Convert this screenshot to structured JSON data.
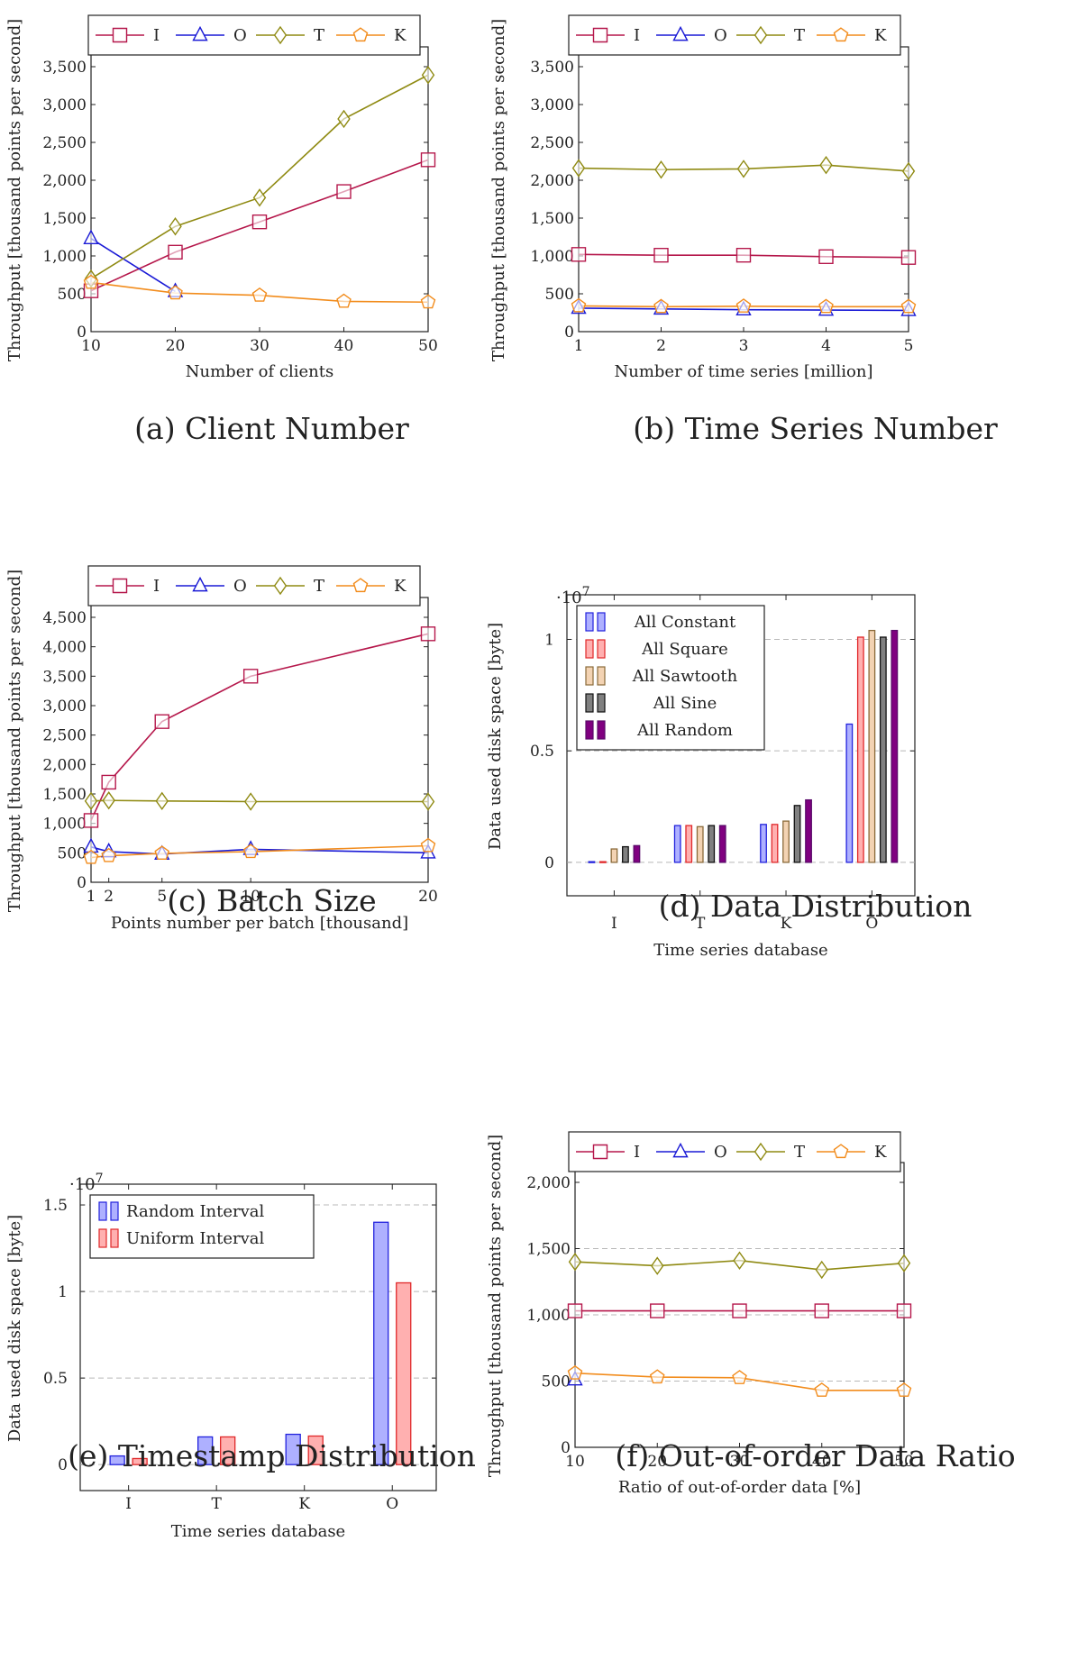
{
  "chart_data": [
    {
      "id": "a",
      "type": "line",
      "caption": "(a) Client Number",
      "xlabel": "Number of clients",
      "ylabel": "Throughput [thousand points per second]",
      "xlim": [
        10,
        50
      ],
      "ylim": [
        0,
        3500
      ],
      "xticks": [
        10,
        20,
        30,
        40,
        50
      ],
      "xtick_labels": [
        "10",
        "20",
        "30",
        "40",
        "50"
      ],
      "yticks": [
        0,
        500,
        1000,
        1500,
        2000,
        2500,
        3000,
        3500
      ],
      "ytick_labels": [
        "0",
        "500",
        "1,000",
        "1,500",
        "2,000",
        "2,500",
        "3,000",
        "3,500"
      ],
      "legend_position": "top",
      "series": [
        {
          "name": "I",
          "marker": "square",
          "color": "#b5174b",
          "x": [
            10,
            20,
            30,
            40,
            50
          ],
          "y": [
            540,
            1050,
            1450,
            1850,
            2270
          ]
        },
        {
          "name": "O",
          "marker": "triangle",
          "color": "#1a1ad6",
          "x": [
            10,
            20
          ],
          "y": [
            1230,
            530
          ]
        },
        {
          "name": "T",
          "marker": "diamond",
          "color": "#8f8a12",
          "x": [
            10,
            20,
            30,
            40,
            50
          ],
          "y": [
            700,
            1390,
            1770,
            2810,
            3390
          ]
        },
        {
          "name": "K",
          "marker": "pentagon",
          "color": "#f28c1c",
          "x": [
            10,
            20,
            30,
            40,
            50
          ],
          "y": [
            650,
            510,
            480,
            400,
            390
          ]
        }
      ]
    },
    {
      "id": "b",
      "type": "line",
      "caption": "(b) Time Series Number",
      "xlabel": "Number of time series [million]",
      "ylabel": "Throughput [thousand points per second]",
      "xlim": [
        1,
        5
      ],
      "ylim": [
        0,
        3500
      ],
      "xticks": [
        1,
        2,
        3,
        4,
        5
      ],
      "xtick_labels": [
        "1",
        "2",
        "3",
        "4",
        "5"
      ],
      "yticks": [
        0,
        500,
        1000,
        1500,
        2000,
        2500,
        3000,
        3500
      ],
      "ytick_labels": [
        "0",
        "500",
        "1,000",
        "1,500",
        "2,000",
        "2,500",
        "3,000",
        "3,500"
      ],
      "legend_position": "top",
      "series": [
        {
          "name": "I",
          "marker": "square",
          "color": "#b5174b",
          "x": [
            1,
            2,
            3,
            4,
            5
          ],
          "y": [
            1020,
            1010,
            1010,
            990,
            980
          ]
        },
        {
          "name": "O",
          "marker": "triangle",
          "color": "#1a1ad6",
          "x": [
            1,
            2,
            3,
            4,
            5
          ],
          "y": [
            310,
            300,
            290,
            285,
            280
          ]
        },
        {
          "name": "T",
          "marker": "diamond",
          "color": "#8f8a12",
          "x": [
            1,
            2,
            3,
            4,
            5
          ],
          "y": [
            2160,
            2140,
            2150,
            2200,
            2120
          ]
        },
        {
          "name": "K",
          "marker": "pentagon",
          "color": "#f28c1c",
          "x": [
            1,
            2,
            3,
            4,
            5
          ],
          "y": [
            340,
            330,
            335,
            330,
            330
          ]
        }
      ]
    },
    {
      "id": "c",
      "type": "line",
      "caption": "(c) Batch Size",
      "xlabel": "Points number per batch [thousand]",
      "ylabel": "Throughput [thousand points per second]",
      "xlim": [
        1,
        20
      ],
      "ylim": [
        0,
        4500
      ],
      "xticks": [
        1,
        2,
        5,
        10,
        20
      ],
      "xtick_labels": [
        "1",
        "2",
        "5",
        "10",
        "20"
      ],
      "yticks": [
        0,
        500,
        1000,
        1500,
        2000,
        2500,
        3000,
        3500,
        4000,
        4500
      ],
      "ytick_labels": [
        "0",
        "500",
        "1,000",
        "1,500",
        "2,000",
        "2,500",
        "3,000",
        "3,500",
        "4,000",
        "4,500"
      ],
      "legend_position": "top",
      "series": [
        {
          "name": "I",
          "marker": "square",
          "color": "#b5174b",
          "x": [
            1,
            2,
            5,
            10,
            20
          ],
          "y": [
            1050,
            1700,
            2730,
            3500,
            4220
          ]
        },
        {
          "name": "O",
          "marker": "triangle",
          "color": "#1a1ad6",
          "x": [
            1,
            2,
            5,
            10,
            20
          ],
          "y": [
            600,
            520,
            480,
            560,
            500
          ]
        },
        {
          "name": "T",
          "marker": "diamond",
          "color": "#8f8a12",
          "x": [
            1,
            2,
            5,
            10,
            20
          ],
          "y": [
            1380,
            1390,
            1380,
            1370,
            1370
          ]
        },
        {
          "name": "K",
          "marker": "pentagon",
          "color": "#f28c1c",
          "x": [
            1,
            2,
            5,
            10,
            20
          ],
          "y": [
            420,
            450,
            490,
            520,
            620
          ]
        }
      ]
    },
    {
      "id": "d",
      "type": "bar",
      "caption": "(d) Data Distribution",
      "xlabel": "Time series database",
      "ylabel": "Data used disk space [byte]",
      "scale_label": "·10",
      "scale_exp": "7",
      "categories": [
        "I",
        "T",
        "K",
        "O"
      ],
      "ylim": [
        -0.15,
        1.2
      ],
      "yticks": [
        0,
        0.5,
        1
      ],
      "ytick_labels": [
        "0",
        "0.5",
        "1"
      ],
      "legend_position": "top-left",
      "series": [
        {
          "name": "All Constant",
          "stroke": "#2222dd",
          "fill": "#aeb0ff",
          "values": [
            0.003,
            0.165,
            0.17,
            0.62
          ]
        },
        {
          "name": "All Square",
          "stroke": "#e0282a",
          "fill": "#ffb0b0",
          "values": [
            0.003,
            0.165,
            0.17,
            1.01
          ]
        },
        {
          "name": "All Sawtooth",
          "stroke": "#8a6a3a",
          "fill": "#f3d3b3",
          "values": [
            0.06,
            0.16,
            0.185,
            1.04
          ]
        },
        {
          "name": "All Sine",
          "stroke": "#111111",
          "fill": "#808080",
          "values": [
            0.07,
            0.165,
            0.255,
            1.01
          ]
        },
        {
          "name": "All Random",
          "stroke": "#5a0a6a",
          "fill": "#800080",
          "values": [
            0.075,
            0.165,
            0.28,
            1.04
          ]
        }
      ]
    },
    {
      "id": "e",
      "type": "bar",
      "caption": "(e) Timestamp Distribution",
      "xlabel": "Time series database",
      "ylabel": "Data used disk space [byte]",
      "scale_label": "·10",
      "scale_exp": "7",
      "categories": [
        "I",
        "T",
        "K",
        "O"
      ],
      "ylim": [
        -0.15,
        1.62
      ],
      "yticks": [
        0,
        0.5,
        1,
        1.5
      ],
      "ytick_labels": [
        "0",
        "0.5",
        "1",
        "1.5"
      ],
      "legend_position": "top-left",
      "series": [
        {
          "name": "Random Interval",
          "stroke": "#2222dd",
          "fill": "#aeb0ff",
          "values": [
            0.05,
            0.16,
            0.175,
            1.4
          ]
        },
        {
          "name": "Uniform Interval",
          "stroke": "#e0282a",
          "fill": "#ffb0b0",
          "values": [
            0.035,
            0.16,
            0.165,
            1.05
          ]
        }
      ]
    },
    {
      "id": "f",
      "type": "line",
      "caption": "(f) Out-of-order Data Ratio",
      "xlabel": "Ratio of out-of-order data [%]",
      "ylabel": "Throughput [thousand points per second]",
      "xlim": [
        10,
        50
      ],
      "ylim": [
        0,
        2000
      ],
      "xticks": [
        10,
        20,
        30,
        40,
        50
      ],
      "xtick_labels": [
        "10",
        "20",
        "30",
        "40",
        "50"
      ],
      "yticks": [
        0,
        500,
        1000,
        1500,
        2000
      ],
      "ytick_labels": [
        "0",
        "500",
        "1,000",
        "1,500",
        "2,000"
      ],
      "grid": true,
      "legend_position": "top",
      "series": [
        {
          "name": "I",
          "marker": "square",
          "color": "#b5174b",
          "x": [
            10,
            20,
            30,
            40,
            50
          ],
          "y": [
            1030,
            1030,
            1030,
            1030,
            1030
          ]
        },
        {
          "name": "O",
          "marker": "triangle",
          "color": "#1a1ad6",
          "x": [
            10
          ],
          "y": [
            510
          ]
        },
        {
          "name": "T",
          "marker": "diamond",
          "color": "#8f8a12",
          "x": [
            10,
            20,
            30,
            40,
            50
          ],
          "y": [
            1400,
            1370,
            1410,
            1340,
            1390
          ]
        },
        {
          "name": "K",
          "marker": "pentagon",
          "color": "#f28c1c",
          "x": [
            10,
            20,
            30,
            40,
            50
          ],
          "y": [
            560,
            530,
            525,
            430,
            430
          ]
        }
      ]
    }
  ]
}
